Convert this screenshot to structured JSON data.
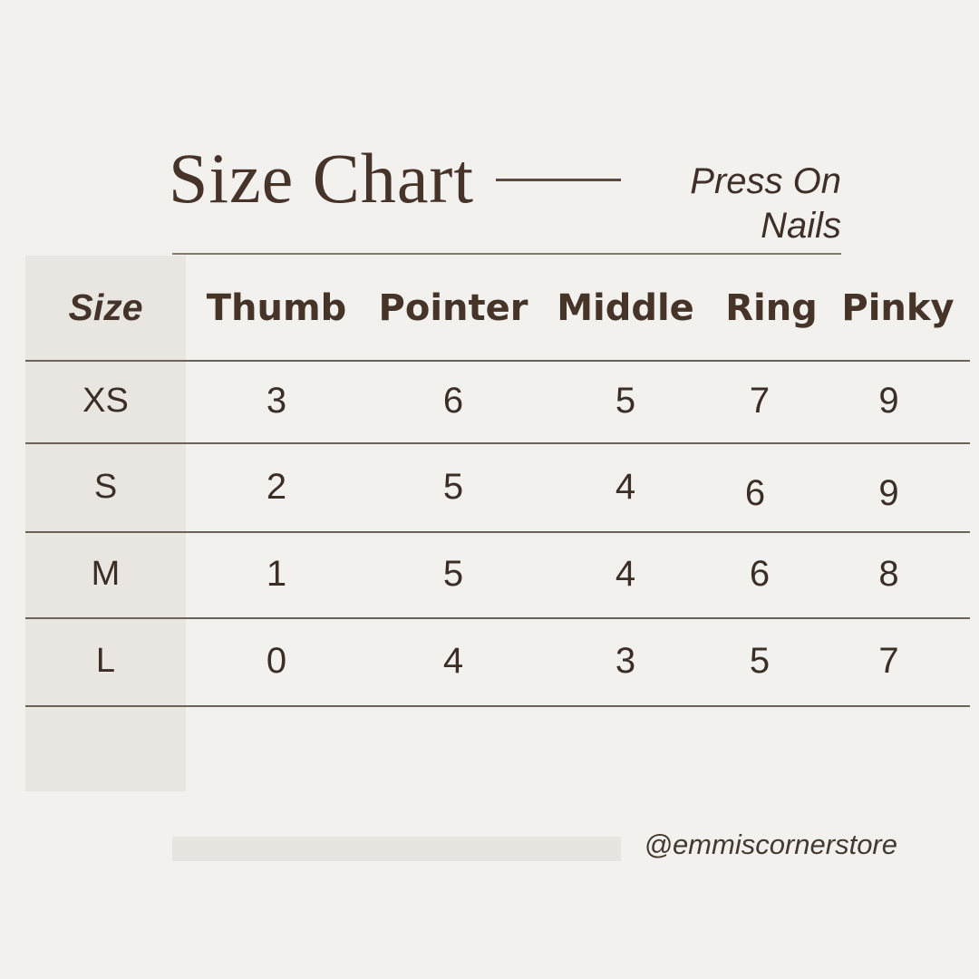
{
  "page": {
    "title": "Size Chart",
    "subtitle_line1": "Press On",
    "subtitle_line2": "Nails",
    "handle": "@emmiscornerstore"
  },
  "colors": {
    "background": "#f2f1ee",
    "size_column_band": "#e9e5e0",
    "footer_bar": "#e8e4df",
    "row_line": "#6b625a",
    "title_text": "#46332a",
    "header_text": "#463429",
    "value_text": "#3a2e26"
  },
  "table": {
    "header": {
      "size_label": "Size",
      "fingers": [
        "Thumb",
        "Pointer",
        "Middle",
        "Ring",
        "Pinky"
      ]
    },
    "rows": [
      {
        "size": "XS",
        "values": [
          "3",
          "6",
          "5",
          "7",
          "9"
        ]
      },
      {
        "size": "S",
        "values": [
          "2",
          "5",
          "4",
          "6",
          "9"
        ]
      },
      {
        "size": "M",
        "values": [
          "1",
          "5",
          "4",
          "6",
          "8"
        ]
      },
      {
        "size": "L",
        "values": [
          "0",
          "4",
          "3",
          "5",
          "7"
        ]
      }
    ]
  },
  "chart_data": {
    "type": "table",
    "title": "Size Chart",
    "subtitle": "Press On Nails",
    "columns": [
      "Size",
      "Thumb",
      "Pointer",
      "Middle",
      "Ring",
      "Pinky"
    ],
    "rows": [
      [
        "XS",
        3,
        6,
        5,
        7,
        9
      ],
      [
        "S",
        2,
        5,
        4,
        6,
        9
      ],
      [
        "M",
        1,
        5,
        4,
        6,
        8
      ],
      [
        "L",
        0,
        4,
        3,
        5,
        7
      ]
    ],
    "footer_handle": "@emmiscornerstore"
  }
}
